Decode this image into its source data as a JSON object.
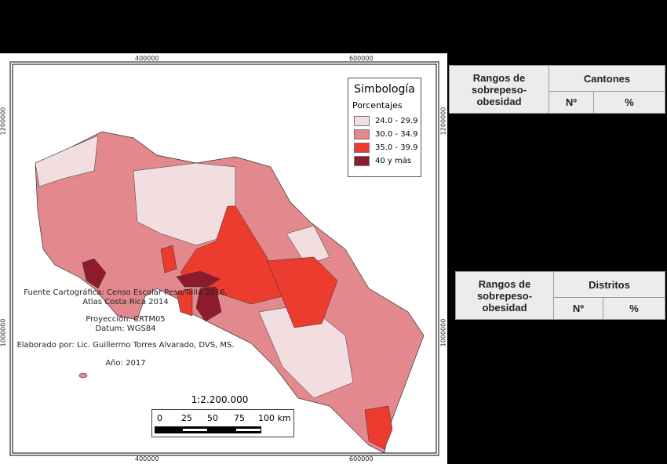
{
  "map": {
    "coords": {
      "top": [
        "400000",
        "600000"
      ],
      "bottom": [
        "400000",
        "600000"
      ],
      "left": [
        "1200000",
        "1000000"
      ],
      "right": [
        "1200000",
        "1000000"
      ]
    },
    "legend": {
      "title": "Simbología",
      "subtitle": "Porcentajes",
      "items": [
        {
          "label": "24.0 - 29.9",
          "color": "#f2dde0"
        },
        {
          "label": "30.0 - 34.9",
          "color": "#e3898d"
        },
        {
          "label": "35.0 - 39.9",
          "color": "#ec3b2f"
        },
        {
          "label": "40 y más",
          "color": "#8c1c2c"
        }
      ]
    },
    "notes": {
      "source_line1": "Fuente Cartográfica: Censo Escolar Peso/Talla 2016,",
      "source_line2": "Atlas Costa Rica 2014",
      "projection": "Proyección: CRTM05",
      "datum": "Datum: WGS84",
      "author": "Elaborado por: Lic. Guillermo Torres Alvarado, DVS, MS.",
      "year": "Año: 2017"
    },
    "scale": {
      "ratio": "1:2.200.000",
      "ticks": [
        "0",
        "25",
        "50",
        "75",
        "100 km"
      ]
    }
  },
  "tables": [
    {
      "col1": "Rangos de sobrepeso-obesidad",
      "group": "Cantones",
      "sub1": "Nº",
      "sub2": "%"
    },
    {
      "col1": "Rangos de sobrepeso-obesidad",
      "group": "Distritos",
      "sub1": "Nº",
      "sub2": "%"
    }
  ]
}
